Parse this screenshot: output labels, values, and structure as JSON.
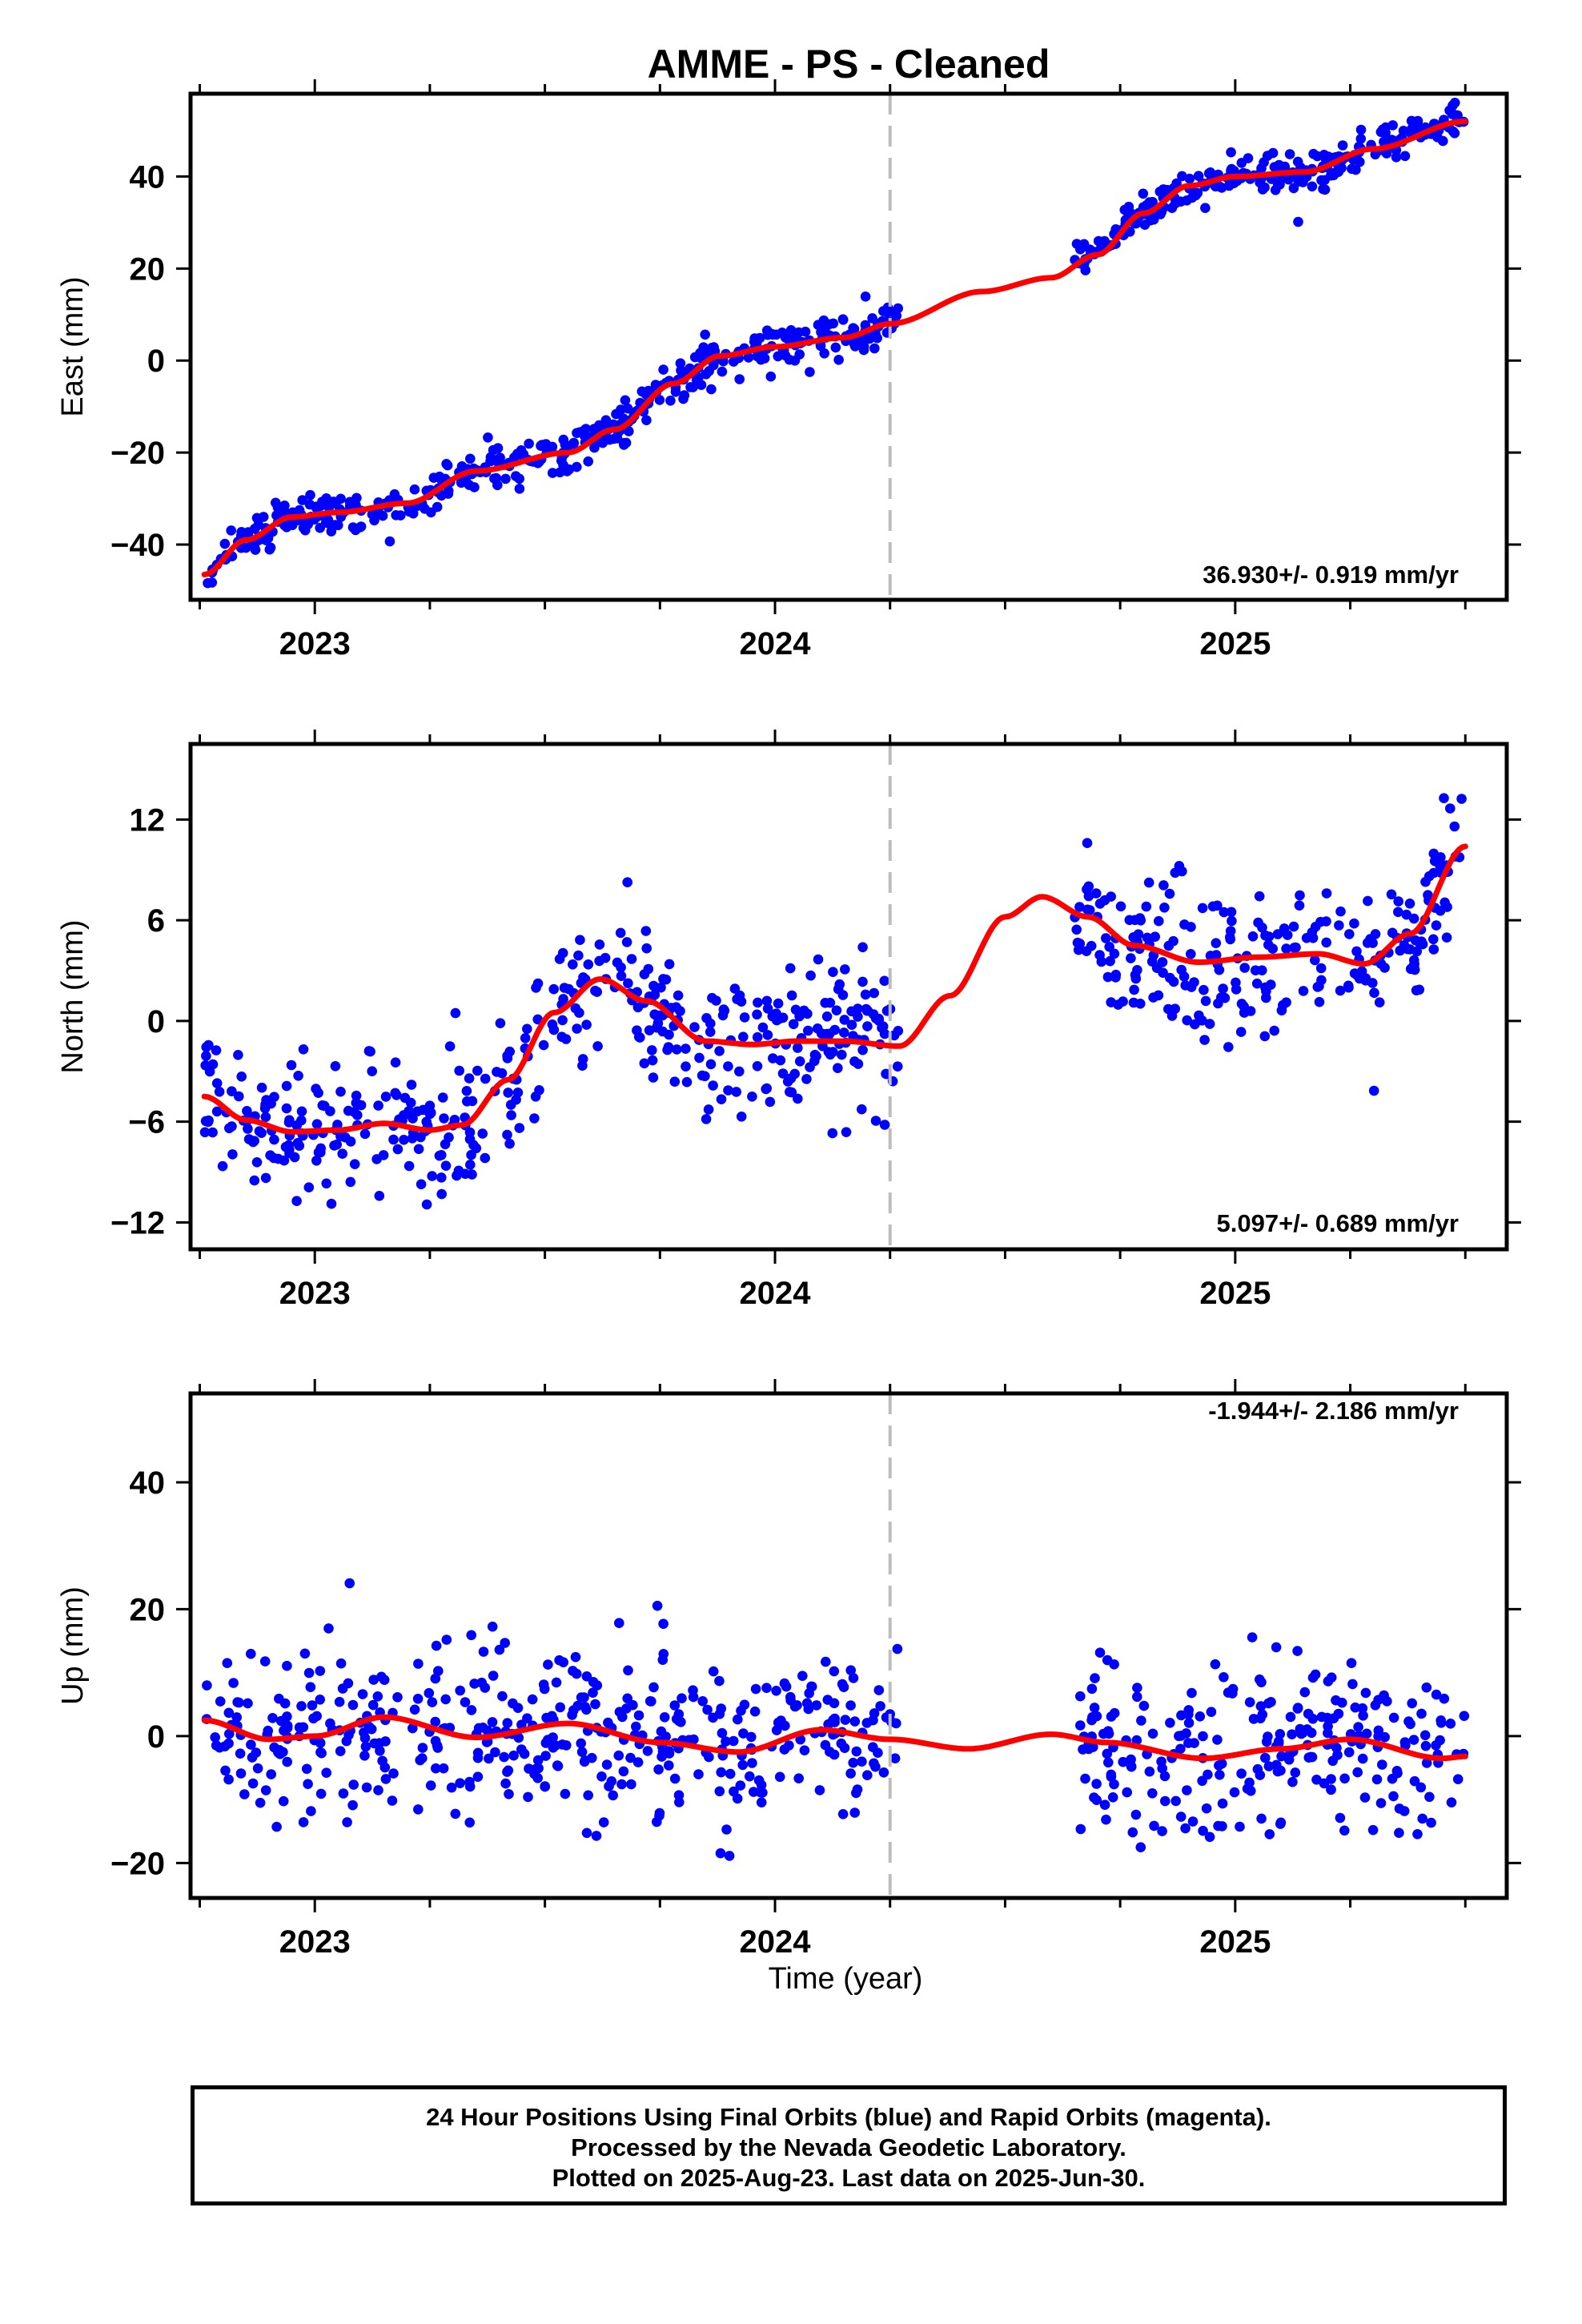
{
  "chart_data": {
    "title": "AMME  - PS - Cleaned",
    "xlabel": "Time (year)",
    "xlim": [
      2022.73,
      2025.59
    ],
    "x_ticks": [
      "2023",
      "2024",
      "2025"
    ],
    "reference_line_x": 2024.25,
    "colors": {
      "points": "#0000ff",
      "fit": "#ff0000",
      "reference_line": "#bdbdbd"
    },
    "panels": [
      {
        "type": "scatter",
        "component": "east",
        "ylabel": "East (mm)",
        "ylim": [
          -52,
          58
        ],
        "y_ticks": [
          "-40",
          "-20",
          "0",
          "20",
          "40"
        ],
        "rate_text": "36.930+/- 0.919 mm/yr",
        "rate_position": "bottom-right",
        "observation_periods": [
          [
            2022.76,
            2024.27
          ],
          [
            2024.65,
            2025.5
          ]
        ],
        "trend": [
          [
            2022.76,
            -46.5
          ],
          [
            2022.85,
            -39
          ],
          [
            2022.95,
            -34
          ],
          [
            2023.05,
            -33
          ],
          [
            2023.2,
            -31
          ],
          [
            2023.35,
            -24
          ],
          [
            2023.55,
            -20
          ],
          [
            2023.65,
            -15
          ],
          [
            2023.78,
            -5
          ],
          [
            2023.88,
            1
          ],
          [
            2024.0,
            3
          ],
          [
            2024.15,
            5
          ],
          [
            2024.25,
            8
          ],
          [
            2024.45,
            15
          ],
          [
            2024.6,
            18
          ],
          [
            2024.7,
            23
          ],
          [
            2024.8,
            32
          ],
          [
            2024.9,
            38
          ],
          [
            2025.0,
            40
          ],
          [
            2025.15,
            41
          ],
          [
            2025.3,
            46
          ],
          [
            2025.5,
            52
          ]
        ],
        "scatter_sd": 2.2,
        "points_per_year": 360
      },
      {
        "type": "scatter",
        "component": "north",
        "ylabel": "North (mm)",
        "ylim": [
          -13.6,
          16.5
        ],
        "y_ticks": [
          "-12",
          "-6",
          "0",
          "6",
          "12"
        ],
        "rate_text": "5.097+/- 0.689 mm/yr",
        "rate_position": "bottom-right",
        "observation_periods": [
          [
            2022.76,
            2024.27
          ],
          [
            2024.65,
            2025.5
          ]
        ],
        "trend": [
          [
            2022.76,
            -4.5
          ],
          [
            2022.85,
            -5.9
          ],
          [
            2022.95,
            -6.6
          ],
          [
            2023.05,
            -6.5
          ],
          [
            2023.15,
            -6.1
          ],
          [
            2023.25,
            -6.5
          ],
          [
            2023.32,
            -6.2
          ],
          [
            2023.42,
            -3.5
          ],
          [
            2023.52,
            0.5
          ],
          [
            2023.62,
            2.5
          ],
          [
            2023.72,
            1.2
          ],
          [
            2023.85,
            -1.2
          ],
          [
            2023.95,
            -1.4
          ],
          [
            2024.05,
            -1.2
          ],
          [
            2024.15,
            -1.2
          ],
          [
            2024.27,
            -1.5
          ],
          [
            2024.38,
            1.5
          ],
          [
            2024.5,
            6.2
          ],
          [
            2024.58,
            7.4
          ],
          [
            2024.68,
            6.2
          ],
          [
            2024.78,
            4.5
          ],
          [
            2024.92,
            3.5
          ],
          [
            2025.05,
            3.8
          ],
          [
            2025.18,
            4
          ],
          [
            2025.28,
            3.4
          ],
          [
            2025.38,
            5.2
          ],
          [
            2025.5,
            10.4
          ]
        ],
        "scatter_sd": 2.0,
        "points_per_year": 360
      },
      {
        "type": "scatter",
        "component": "up",
        "ylabel": "Up (mm)",
        "ylim": [
          -25.5,
          54
        ],
        "y_ticks": [
          "-20",
          "0",
          "20",
          "40"
        ],
        "rate_text": "-1.944+/- 2.186 mm/yr",
        "rate_position": "top-right",
        "observation_periods": [
          [
            2022.76,
            2024.27
          ],
          [
            2024.65,
            2025.5
          ]
        ],
        "trend": [
          [
            2022.76,
            2.5
          ],
          [
            2022.9,
            -0.5
          ],
          [
            2023.0,
            0
          ],
          [
            2023.15,
            3
          ],
          [
            2023.35,
            -0.2
          ],
          [
            2023.55,
            2
          ],
          [
            2023.75,
            -1
          ],
          [
            2023.92,
            -2.5
          ],
          [
            2024.1,
            1
          ],
          [
            2024.25,
            -0.5
          ],
          [
            2024.42,
            -2
          ],
          [
            2024.6,
            0.3
          ],
          [
            2024.72,
            -1
          ],
          [
            2024.93,
            -3.5
          ],
          [
            2025.1,
            -2
          ],
          [
            2025.25,
            -0.5
          ],
          [
            2025.45,
            -3.5
          ],
          [
            2025.5,
            -3.2
          ]
        ],
        "scatter_sd": 6.5,
        "points_per_year": 360
      }
    ]
  },
  "footer": {
    "line1": "24 Hour Positions Using Final Orbits (blue) and Rapid Orbits (magenta).",
    "line2": "Processed by the Nevada Geodetic Laboratory.",
    "line3": "Plotted on 2025-Aug-23. Last data on 2025-Jun-30."
  }
}
